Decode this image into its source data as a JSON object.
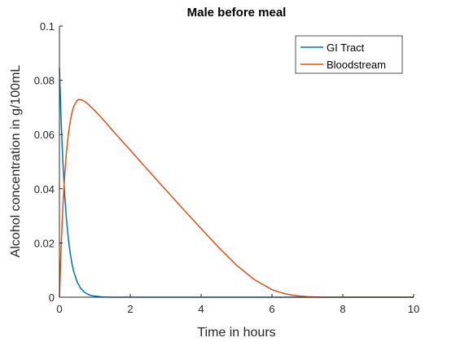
{
  "chart_data": {
    "type": "line",
    "title": "Male before meal",
    "xlabel": "Time in hours",
    "ylabel": "Alcohol concentration in g/100mL",
    "xlim": [
      0,
      10
    ],
    "ylim": [
      0,
      0.1
    ],
    "x_ticks": [
      "0",
      "2",
      "4",
      "6",
      "8",
      "10"
    ],
    "y_ticks": [
      "0",
      "0.02",
      "0.04",
      "0.06",
      "0.08",
      "0.1"
    ],
    "grid": false,
    "legend_position": "top-right",
    "series": [
      {
        "name": "GI Tract",
        "color": "#0072BD",
        "x": [
          0,
          0.05,
          0.1,
          0.15,
          0.2,
          0.25,
          0.3,
          0.35,
          0.4,
          0.5,
          0.6,
          0.7,
          0.8,
          0.9,
          1.0,
          1.2,
          1.5,
          2,
          3,
          4,
          5,
          6,
          7,
          8,
          9,
          10
        ],
        "y": [
          0.0845,
          0.0644,
          0.0491,
          0.0374,
          0.0285,
          0.0217,
          0.0166,
          0.0126,
          0.0096,
          0.0056,
          0.0033,
          0.0019,
          0.0011,
          0.0006,
          0.0004,
          0.0001,
          0,
          0,
          0,
          0,
          0,
          0,
          0,
          0,
          0,
          0
        ]
      },
      {
        "name": "Bloodstream",
        "color": "#D95319",
        "x": [
          0,
          0.05,
          0.1,
          0.15,
          0.2,
          0.25,
          0.3,
          0.35,
          0.4,
          0.5,
          0.55,
          0.6,
          0.7,
          0.8,
          1.0,
          1.2,
          1.5,
          2.0,
          2.5,
          3.0,
          3.5,
          4.0,
          4.5,
          5.0,
          5.5,
          6.0,
          6.2,
          6.4,
          6.6,
          6.8,
          7.0,
          7.2,
          7.4,
          7.6,
          7.8,
          8.0,
          9.0,
          10.0
        ],
        "y": [
          0,
          0.0195,
          0.0343,
          0.0454,
          0.0537,
          0.0599,
          0.0645,
          0.0679,
          0.0703,
          0.0726,
          0.0729,
          0.0729,
          0.0723,
          0.0713,
          0.0688,
          0.066,
          0.0615,
          0.0542,
          0.0469,
          0.0396,
          0.0324,
          0.0253,
          0.0183,
          0.0118,
          0.0065,
          0.0028,
          0.0019,
          0.0012,
          0.0007,
          0.0004,
          0.0002,
          0.0001,
          0,
          0,
          0,
          0,
          0,
          0
        ]
      }
    ]
  }
}
